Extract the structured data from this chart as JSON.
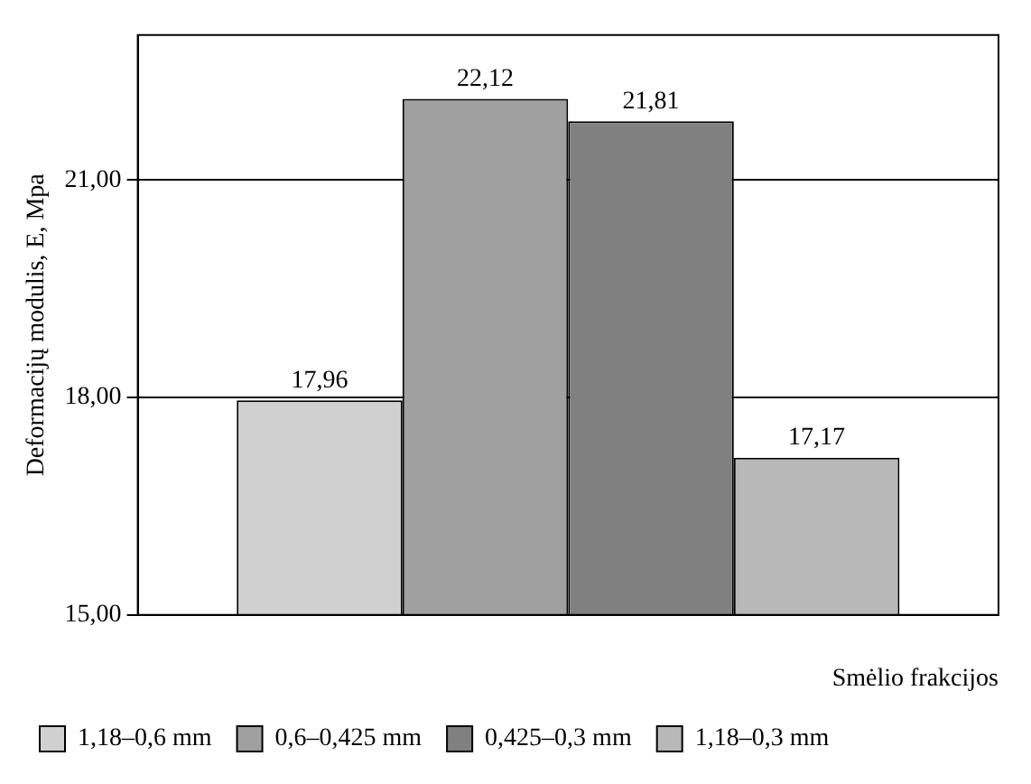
{
  "chart_data": {
    "type": "bar",
    "ylabel": "Deformacijų modulis, E, Mpa",
    "xlabel": "Smėlio frakcijos",
    "categories": [
      null
    ],
    "series": [
      {
        "name": "1,18–0,6 mm",
        "color": "#d0d0d0",
        "values": [
          17.96
        ],
        "value_labels": [
          "17,96"
        ]
      },
      {
        "name": "0,6–0,425 mm",
        "color": "#a0a0a0",
        "values": [
          22.12
        ],
        "value_labels": [
          "22,12"
        ]
      },
      {
        "name": "0,425–0,3 mm",
        "color": "#808080",
        "values": [
          21.81
        ],
        "value_labels": [
          "21,81"
        ]
      },
      {
        "name": "1,18–0,3 mm",
        "color": "#b8b8b8",
        "values": [
          17.17
        ],
        "value_labels": [
          "17,17"
        ]
      }
    ],
    "ylim": [
      15,
      23
    ],
    "yticks": [
      {
        "value": 15,
        "label": "15,00"
      },
      {
        "value": 18,
        "label": "18,00"
      },
      {
        "value": 21,
        "label": "21,00"
      }
    ],
    "grid": "y",
    "legend": "bottom"
  }
}
